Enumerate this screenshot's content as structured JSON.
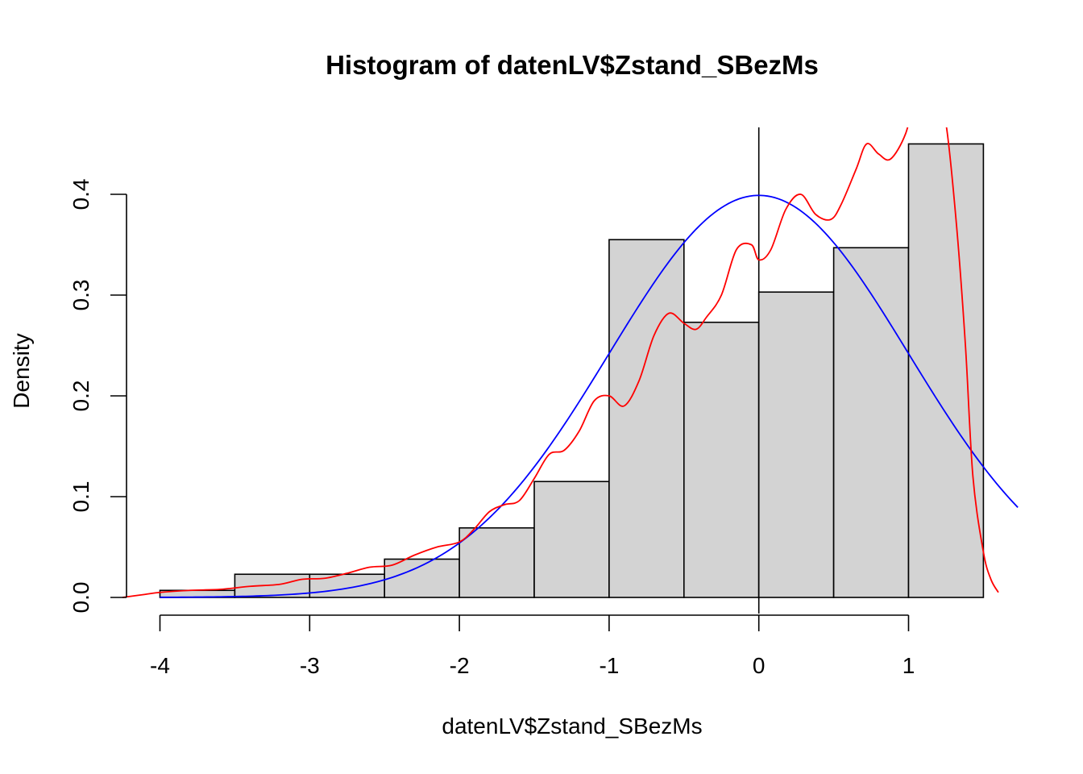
{
  "chart_data": {
    "type": "bar",
    "title": "Histogram of datenLV$Zstand_SBezMs",
    "xlabel": "datenLV$Zstand_SBezMs",
    "ylabel": "Density",
    "xlim": [
      -4.25,
      1.75
    ],
    "ylim": [
      0,
      0.45
    ],
    "x_ticks": [
      -4,
      -3,
      -2,
      -1,
      0,
      1
    ],
    "x_tick_labels": [
      "-4",
      "-3",
      "-2",
      "-1",
      "0",
      "1"
    ],
    "y_ticks": [
      0.0,
      0.1,
      0.2,
      0.3,
      0.4
    ],
    "y_tick_labels": [
      "0.0",
      "0.1",
      "0.2",
      "0.3",
      "0.4"
    ],
    "bins": [
      {
        "from": -4.0,
        "to": -3.5,
        "density": 0.007
      },
      {
        "from": -3.5,
        "to": -3.0,
        "density": 0.023
      },
      {
        "from": -3.0,
        "to": -2.5,
        "density": 0.023
      },
      {
        "from": -2.5,
        "to": -2.0,
        "density": 0.038
      },
      {
        "from": -2.0,
        "to": -1.5,
        "density": 0.069
      },
      {
        "from": -1.5,
        "to": -1.0,
        "density": 0.115
      },
      {
        "from": -1.0,
        "to": -0.5,
        "density": 0.355
      },
      {
        "from": -0.5,
        "to": 0.0,
        "density": 0.273
      },
      {
        "from": 0.0,
        "to": 0.5,
        "density": 0.303
      },
      {
        "from": 0.5,
        "to": 1.0,
        "density": 0.347
      },
      {
        "from": 1.0,
        "to": 1.5,
        "density": 0.45
      }
    ],
    "bar_color": "#d3d3d3",
    "vertical_line_x": 0,
    "series": [
      {
        "type": "normal_curve",
        "color": "#0000ff",
        "mean": 0,
        "sd": 1,
        "x_range": [
          -4.0,
          1.73
        ]
      },
      {
        "type": "density",
        "color": "#ff0000",
        "x": [
          -4.25,
          -4.1,
          -4.0,
          -3.8,
          -3.6,
          -3.4,
          -3.2,
          -3.05,
          -2.9,
          -2.75,
          -2.6,
          -2.45,
          -2.3,
          -2.15,
          -2.0,
          -1.9,
          -1.8,
          -1.7,
          -1.6,
          -1.5,
          -1.4,
          -1.3,
          -1.2,
          -1.1,
          -1.0,
          -0.9,
          -0.8,
          -0.7,
          -0.6,
          -0.5,
          -0.42,
          -0.35,
          -0.25,
          -0.15,
          -0.05,
          0.0,
          0.08,
          0.18,
          0.28,
          0.38,
          0.48,
          0.55,
          0.65,
          0.72,
          0.8,
          0.88,
          0.98,
          1.05,
          1.12,
          1.18,
          1.25,
          1.32,
          1.38,
          1.43,
          1.5,
          1.55,
          1.6
        ],
        "y": [
          0.0,
          0.003,
          0.005,
          0.007,
          0.008,
          0.011,
          0.013,
          0.018,
          0.019,
          0.024,
          0.03,
          0.032,
          0.042,
          0.05,
          0.055,
          0.068,
          0.085,
          0.092,
          0.096,
          0.118,
          0.142,
          0.146,
          0.165,
          0.195,
          0.2,
          0.19,
          0.215,
          0.26,
          0.282,
          0.272,
          0.266,
          0.278,
          0.3,
          0.345,
          0.35,
          0.335,
          0.345,
          0.385,
          0.4,
          0.38,
          0.375,
          0.39,
          0.425,
          0.45,
          0.44,
          0.435,
          0.46,
          0.5,
          0.52,
          0.5,
          0.47,
          0.37,
          0.25,
          0.12,
          0.045,
          0.018,
          0.005
        ]
      }
    ]
  }
}
